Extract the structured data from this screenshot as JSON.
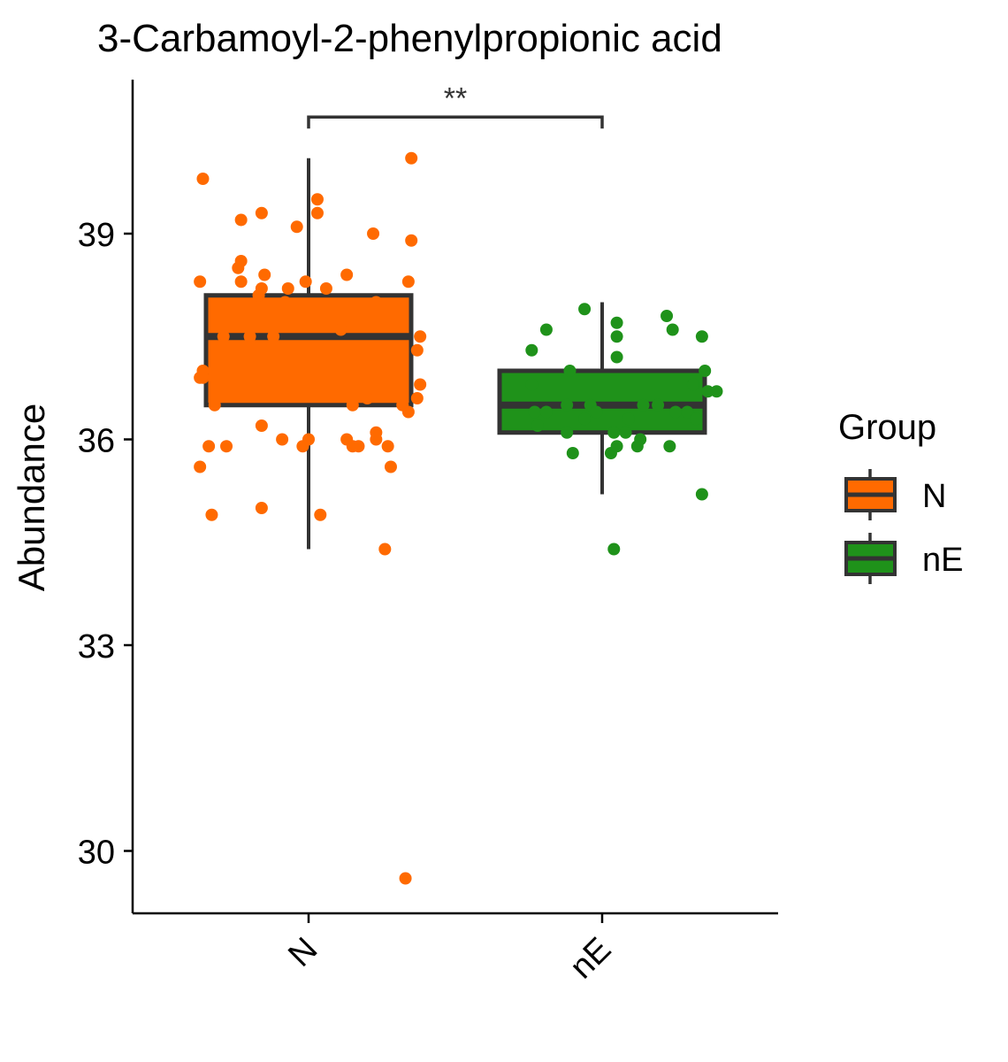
{
  "chart_data": {
    "type": "boxplot",
    "title": "3-Carbamoyl-2-phenylpropionic acid",
    "xlabel": "",
    "ylabel": "Abundance",
    "ylim": [
      29.1,
      41.2
    ],
    "yticks": [
      30,
      33,
      36,
      39
    ],
    "categories": [
      "N",
      "nE"
    ],
    "colors": {
      "N": "#FF6A00",
      "nE": "#1F921A",
      "box_outline": "#333333"
    },
    "legend": {
      "title": "Group",
      "placement": "right",
      "entries": [
        "N",
        "nE"
      ]
    },
    "significance": {
      "label": "**",
      "between": [
        "N",
        "nE"
      ],
      "y": 40.7
    },
    "boxes": [
      {
        "group": "N",
        "whisker_low": 34.4,
        "q1": 36.5,
        "median": 37.5,
        "q3": 38.1,
        "whisker_high": 40.1
      },
      {
        "group": "nE",
        "whisker_low": 35.2,
        "q1": 36.1,
        "median": 36.5,
        "q3": 37.0,
        "whisker_high": 38.0
      }
    ],
    "points": [
      {
        "group": "N",
        "values": [
          [
            -0.36,
            39.8
          ],
          [
            -0.23,
            39.2
          ],
          [
            -0.16,
            39.3
          ],
          [
            -0.04,
            39.1
          ],
          [
            0.03,
            39.5
          ],
          [
            0.03,
            39.3
          ],
          [
            0.22,
            39.0
          ],
          [
            0.35,
            40.1
          ],
          [
            0.35,
            38.9
          ],
          [
            -0.23,
            38.6
          ],
          [
            -0.24,
            38.5
          ],
          [
            -0.15,
            38.4
          ],
          [
            -0.01,
            38.3
          ],
          [
            0.13,
            38.4
          ],
          [
            0.34,
            38.3
          ],
          [
            -0.37,
            38.3
          ],
          [
            -0.23,
            38.3
          ],
          [
            -0.16,
            38.2
          ],
          [
            -0.07,
            38.2
          ],
          [
            0.06,
            38.2
          ],
          [
            -0.17,
            38.1
          ],
          [
            -0.08,
            38.0
          ],
          [
            0.23,
            38.0
          ],
          [
            0.32,
            37.9
          ],
          [
            0.11,
            37.6
          ],
          [
            0.38,
            37.5
          ],
          [
            -0.29,
            37.5
          ],
          [
            -0.2,
            37.5
          ],
          [
            -0.12,
            37.5
          ],
          [
            0.37,
            37.3
          ],
          [
            -0.36,
            37.0
          ],
          [
            -0.37,
            36.9
          ],
          [
            -0.36,
            36.9
          ],
          [
            0.38,
            36.8
          ],
          [
            0.2,
            36.6
          ],
          [
            0.37,
            36.6
          ],
          [
            -0.32,
            36.5
          ],
          [
            0.15,
            36.5
          ],
          [
            0.32,
            36.5
          ],
          [
            0.34,
            36.4
          ],
          [
            -0.16,
            36.2
          ],
          [
            -0.09,
            36.0
          ],
          [
            0.0,
            36.0
          ],
          [
            0.13,
            36.0
          ],
          [
            0.15,
            35.9
          ],
          [
            0.17,
            35.9
          ],
          [
            0.23,
            36.1
          ],
          [
            0.23,
            36.0
          ],
          [
            0.27,
            35.9
          ],
          [
            -0.34,
            35.9
          ],
          [
            -0.28,
            35.9
          ],
          [
            -0.02,
            35.9
          ],
          [
            -0.37,
            35.6
          ],
          [
            0.28,
            35.6
          ],
          [
            -0.33,
            34.9
          ],
          [
            -0.16,
            35.0
          ],
          [
            0.04,
            34.9
          ],
          [
            0.26,
            34.4
          ],
          [
            0.33,
            29.6
          ]
        ]
      },
      {
        "group": "nE",
        "values": [
          [
            -0.19,
            37.6
          ],
          [
            -0.24,
            36.8
          ],
          [
            -0.23,
            36.4
          ],
          [
            -0.06,
            37.9
          ],
          [
            -0.24,
            37.3
          ],
          [
            -0.11,
            37.0
          ],
          [
            0.05,
            37.7
          ],
          [
            0.05,
            37.5
          ],
          [
            0.05,
            37.2
          ],
          [
            0.22,
            37.8
          ],
          [
            0.24,
            37.6
          ],
          [
            0.34,
            37.5
          ],
          [
            0.35,
            37.0
          ],
          [
            0.31,
            36.8
          ],
          [
            0.36,
            36.7
          ],
          [
            0.39,
            36.7
          ],
          [
            -0.19,
            36.4
          ],
          [
            -0.12,
            36.5
          ],
          [
            -0.04,
            36.5
          ],
          [
            -0.02,
            36.4
          ],
          [
            -0.06,
            36.3
          ],
          [
            -0.22,
            36.2
          ],
          [
            -0.12,
            36.1
          ],
          [
            0.04,
            36.1
          ],
          [
            0.08,
            36.1
          ],
          [
            0.13,
            36.0
          ],
          [
            0.09,
            36.3
          ],
          [
            0.14,
            36.5
          ],
          [
            0.19,
            36.5
          ],
          [
            0.25,
            36.4
          ],
          [
            0.29,
            36.4
          ],
          [
            0.32,
            36.3
          ],
          [
            -0.1,
            35.8
          ],
          [
            0.03,
            35.8
          ],
          [
            0.05,
            35.9
          ],
          [
            0.12,
            35.9
          ],
          [
            0.23,
            35.9
          ],
          [
            0.34,
            35.2
          ],
          [
            0.04,
            34.4
          ]
        ]
      }
    ]
  }
}
